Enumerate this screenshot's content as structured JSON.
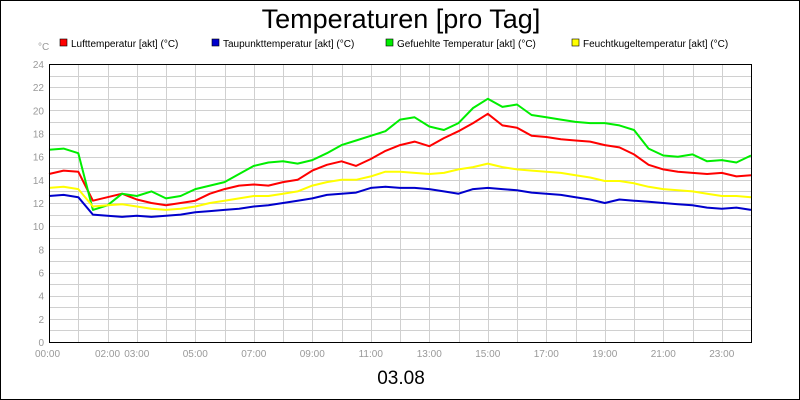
{
  "chart_data": {
    "type": "line",
    "title": "Temperaturen [pro Tag]",
    "xlabel": "03.08",
    "ylabel": "°C",
    "ylim": [
      0,
      24
    ],
    "yticks": [
      0,
      2,
      4,
      6,
      8,
      10,
      12,
      14,
      16,
      18,
      20,
      22,
      24
    ],
    "xticks": [
      "00:00",
      "02:00",
      "03:00",
      "05:00",
      "07:00",
      "09:00",
      "11:00",
      "13:00",
      "15:00",
      "17:00",
      "19:00",
      "21:00",
      "23:00"
    ],
    "xtick_hours": [
      0,
      2,
      3,
      5,
      7,
      9,
      11,
      13,
      15,
      17,
      19,
      21,
      23
    ],
    "xlim_hours": [
      0,
      24
    ],
    "grid": true,
    "legend_position": "top",
    "series": [
      {
        "name": "Lufttemperatur [akt] (°C)",
        "color": "#ff0000",
        "points": [
          [
            0,
            14.5
          ],
          [
            0.5,
            14.8
          ],
          [
            1.0,
            14.7
          ],
          [
            1.5,
            12.2
          ],
          [
            2.0,
            12.5
          ],
          [
            2.5,
            12.8
          ],
          [
            3.0,
            12.3
          ],
          [
            3.5,
            12.0
          ],
          [
            4.0,
            11.8
          ],
          [
            4.5,
            12.0
          ],
          [
            5.0,
            12.2
          ],
          [
            5.5,
            12.8
          ],
          [
            6.0,
            13.2
          ],
          [
            6.5,
            13.5
          ],
          [
            7.0,
            13.6
          ],
          [
            7.5,
            13.5
          ],
          [
            8.0,
            13.8
          ],
          [
            8.5,
            14.0
          ],
          [
            9.0,
            14.8
          ],
          [
            9.5,
            15.3
          ],
          [
            10.0,
            15.6
          ],
          [
            10.5,
            15.2
          ],
          [
            11.0,
            15.8
          ],
          [
            11.5,
            16.5
          ],
          [
            12.0,
            17.0
          ],
          [
            12.5,
            17.3
          ],
          [
            13.0,
            16.9
          ],
          [
            13.5,
            17.6
          ],
          [
            14.0,
            18.2
          ],
          [
            14.5,
            18.9
          ],
          [
            15.0,
            19.7
          ],
          [
            15.5,
            18.7
          ],
          [
            16.0,
            18.5
          ],
          [
            16.5,
            17.8
          ],
          [
            17.0,
            17.7
          ],
          [
            17.5,
            17.5
          ],
          [
            18.0,
            17.4
          ],
          [
            18.5,
            17.3
          ],
          [
            19.0,
            17.0
          ],
          [
            19.5,
            16.8
          ],
          [
            20.0,
            16.2
          ],
          [
            20.5,
            15.3
          ],
          [
            21.0,
            14.9
          ],
          [
            21.5,
            14.7
          ],
          [
            22.0,
            14.6
          ],
          [
            22.5,
            14.5
          ],
          [
            23.0,
            14.6
          ],
          [
            23.5,
            14.3
          ],
          [
            24.0,
            14.4
          ]
        ]
      },
      {
        "name": "Taupunkttemperatur [akt] (°C)",
        "color": "#0000cc",
        "points": [
          [
            0,
            12.6
          ],
          [
            0.5,
            12.7
          ],
          [
            1.0,
            12.5
          ],
          [
            1.5,
            11.0
          ],
          [
            2.0,
            10.9
          ],
          [
            2.5,
            10.8
          ],
          [
            3.0,
            10.9
          ],
          [
            3.5,
            10.8
          ],
          [
            4.0,
            10.9
          ],
          [
            4.5,
            11.0
          ],
          [
            5.0,
            11.2
          ],
          [
            5.5,
            11.3
          ],
          [
            6.0,
            11.4
          ],
          [
            6.5,
            11.5
          ],
          [
            7.0,
            11.7
          ],
          [
            7.5,
            11.8
          ],
          [
            8.0,
            12.0
          ],
          [
            8.5,
            12.2
          ],
          [
            9.0,
            12.4
          ],
          [
            9.5,
            12.7
          ],
          [
            10.0,
            12.8
          ],
          [
            10.5,
            12.9
          ],
          [
            11.0,
            13.3
          ],
          [
            11.5,
            13.4
          ],
          [
            12.0,
            13.3
          ],
          [
            12.5,
            13.3
          ],
          [
            13.0,
            13.2
          ],
          [
            13.5,
            13.0
          ],
          [
            14.0,
            12.8
          ],
          [
            14.5,
            13.2
          ],
          [
            15.0,
            13.3
          ],
          [
            15.5,
            13.2
          ],
          [
            16.0,
            13.1
          ],
          [
            16.5,
            12.9
          ],
          [
            17.0,
            12.8
          ],
          [
            17.5,
            12.7
          ],
          [
            18.0,
            12.5
          ],
          [
            18.5,
            12.3
          ],
          [
            19.0,
            12.0
          ],
          [
            19.5,
            12.3
          ],
          [
            20.0,
            12.2
          ],
          [
            20.5,
            12.1
          ],
          [
            21.0,
            12.0
          ],
          [
            21.5,
            11.9
          ],
          [
            22.0,
            11.8
          ],
          [
            22.5,
            11.6
          ],
          [
            23.0,
            11.5
          ],
          [
            23.5,
            11.6
          ],
          [
            24.0,
            11.4
          ]
        ]
      },
      {
        "name": "Gefuehlte Temperatur [akt] (°C)",
        "color": "#00ee00",
        "points": [
          [
            0,
            16.6
          ],
          [
            0.5,
            16.7
          ],
          [
            1.0,
            16.3
          ],
          [
            1.5,
            11.4
          ],
          [
            2.0,
            11.8
          ],
          [
            2.5,
            12.8
          ],
          [
            3.0,
            12.6
          ],
          [
            3.5,
            13.0
          ],
          [
            4.0,
            12.4
          ],
          [
            4.5,
            12.6
          ],
          [
            5.0,
            13.2
          ],
          [
            5.5,
            13.5
          ],
          [
            6.0,
            13.8
          ],
          [
            6.5,
            14.5
          ],
          [
            7.0,
            15.2
          ],
          [
            7.5,
            15.5
          ],
          [
            8.0,
            15.6
          ],
          [
            8.5,
            15.4
          ],
          [
            9.0,
            15.7
          ],
          [
            9.5,
            16.3
          ],
          [
            10.0,
            17.0
          ],
          [
            10.5,
            17.4
          ],
          [
            11.0,
            17.8
          ],
          [
            11.5,
            18.2
          ],
          [
            12.0,
            19.2
          ],
          [
            12.5,
            19.4
          ],
          [
            13.0,
            18.6
          ],
          [
            13.5,
            18.3
          ],
          [
            14.0,
            18.9
          ],
          [
            14.5,
            20.2
          ],
          [
            15.0,
            21.0
          ],
          [
            15.5,
            20.3
          ],
          [
            16.0,
            20.5
          ],
          [
            16.5,
            19.6
          ],
          [
            17.0,
            19.4
          ],
          [
            17.5,
            19.2
          ],
          [
            18.0,
            19.0
          ],
          [
            18.5,
            18.9
          ],
          [
            19.0,
            18.9
          ],
          [
            19.5,
            18.7
          ],
          [
            20.0,
            18.3
          ],
          [
            20.5,
            16.7
          ],
          [
            21.0,
            16.1
          ],
          [
            21.5,
            16.0
          ],
          [
            22.0,
            16.2
          ],
          [
            22.5,
            15.6
          ],
          [
            23.0,
            15.7
          ],
          [
            23.5,
            15.5
          ],
          [
            24.0,
            16.1
          ]
        ]
      },
      {
        "name": "Feuchtkugeltemperatur [akt] (°C)",
        "color": "#ffff00",
        "points": [
          [
            0,
            13.3
          ],
          [
            0.5,
            13.4
          ],
          [
            1.0,
            13.2
          ],
          [
            1.5,
            11.7
          ],
          [
            2.0,
            11.8
          ],
          [
            2.5,
            11.9
          ],
          [
            3.0,
            11.7
          ],
          [
            3.5,
            11.5
          ],
          [
            4.0,
            11.4
          ],
          [
            4.5,
            11.5
          ],
          [
            5.0,
            11.7
          ],
          [
            5.5,
            12.0
          ],
          [
            6.0,
            12.2
          ],
          [
            6.5,
            12.4
          ],
          [
            7.0,
            12.6
          ],
          [
            7.5,
            12.6
          ],
          [
            8.0,
            12.8
          ],
          [
            8.5,
            13.0
          ],
          [
            9.0,
            13.5
          ],
          [
            9.5,
            13.8
          ],
          [
            10.0,
            14.0
          ],
          [
            10.5,
            14.0
          ],
          [
            11.0,
            14.3
          ],
          [
            11.5,
            14.7
          ],
          [
            12.0,
            14.7
          ],
          [
            12.5,
            14.6
          ],
          [
            13.0,
            14.5
          ],
          [
            13.5,
            14.6
          ],
          [
            14.0,
            14.9
          ],
          [
            14.5,
            15.1
          ],
          [
            15.0,
            15.4
          ],
          [
            15.5,
            15.1
          ],
          [
            16.0,
            14.9
          ],
          [
            16.5,
            14.8
          ],
          [
            17.0,
            14.7
          ],
          [
            17.5,
            14.6
          ],
          [
            18.0,
            14.4
          ],
          [
            18.5,
            14.2
          ],
          [
            19.0,
            13.9
          ],
          [
            19.5,
            13.9
          ],
          [
            20.0,
            13.7
          ],
          [
            20.5,
            13.4
          ],
          [
            21.0,
            13.2
          ],
          [
            21.5,
            13.1
          ],
          [
            22.0,
            13.0
          ],
          [
            22.5,
            12.8
          ],
          [
            23.0,
            12.6
          ],
          [
            23.5,
            12.6
          ],
          [
            24.0,
            12.5
          ]
        ]
      }
    ]
  }
}
